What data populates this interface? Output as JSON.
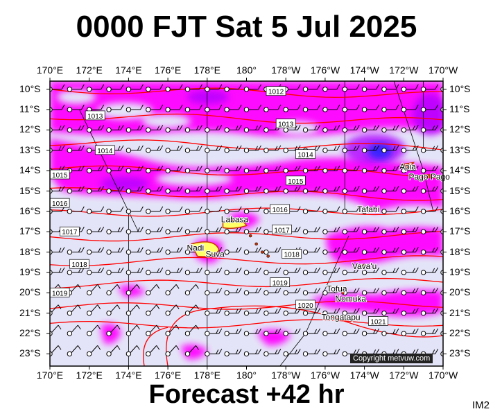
{
  "header": {
    "title": "0000 FJT Sat 5 Jul 2025"
  },
  "footer": {
    "forecast": "Forecast +42 hr",
    "tag": "IM2"
  },
  "copyright": "Copyright metvuw.com",
  "axes": {
    "lon_labels": [
      "170°E",
      "172°E",
      "174°E",
      "176°E",
      "178°E",
      "180°",
      "178°W",
      "176°W",
      "174°W",
      "172°W",
      "170°W"
    ],
    "lat_labels": [
      "10°S",
      "11°S",
      "12°S",
      "13°S",
      "14°S",
      "15°S",
      "16°S",
      "17°S",
      "18°S",
      "19°S",
      "20°S",
      "21°S",
      "22°S",
      "23°S"
    ]
  },
  "isobars": [
    {
      "label": "1012",
      "label_lon": 181.5,
      "label_lat": -10.1
    },
    {
      "label": "1013",
      "label_lon": 172.3,
      "label_lat": -11.3
    },
    {
      "label": "1013",
      "label_lon": 182.0,
      "label_lat": -11.7
    },
    {
      "label": "1014",
      "label_lon": 172.8,
      "label_lat": -13.0
    },
    {
      "label": "1014",
      "label_lon": 183.0,
      "label_lat": -13.2
    },
    {
      "label": "1015",
      "label_lon": 170.5,
      "label_lat": -14.2
    },
    {
      "label": "1015",
      "label_lon": 182.5,
      "label_lat": -14.5
    },
    {
      "label": "1016",
      "label_lon": 170.5,
      "label_lat": -15.6
    },
    {
      "label": "1016",
      "label_lon": 181.7,
      "label_lat": -15.9
    },
    {
      "label": "1017",
      "label_lon": 171.0,
      "label_lat": -17.0
    },
    {
      "label": "1017",
      "label_lon": 181.8,
      "label_lat": -16.9
    },
    {
      "label": "1018",
      "label_lon": 171.5,
      "label_lat": -18.6
    },
    {
      "label": "1018",
      "label_lon": 182.3,
      "label_lat": -18.1
    },
    {
      "label": "1019",
      "label_lon": 170.5,
      "label_lat": -20.0
    },
    {
      "label": "1019",
      "label_lon": 181.7,
      "label_lat": -19.5
    },
    {
      "label": "1020",
      "label_lon": 183.0,
      "label_lat": -20.6
    },
    {
      "label": "1021",
      "label_lon": 186.7,
      "label_lat": -21.4
    }
  ],
  "places": [
    {
      "name": "Apia",
      "lon": 188.2,
      "lat": -13.8
    },
    {
      "name": "Pago Pago",
      "lon": 189.3,
      "lat": -14.3
    },
    {
      "name": "Tafahi",
      "lon": 186.2,
      "lat": -15.9
    },
    {
      "name": "Labasa",
      "lon": 179.4,
      "lat": -16.4
    },
    {
      "name": "Nadi",
      "lon": 177.4,
      "lat": -17.8
    },
    {
      "name": "Suva",
      "lon": 178.4,
      "lat": -18.1
    },
    {
      "name": "Vava'u",
      "lon": 186.0,
      "lat": -18.7
    },
    {
      "name": "Tofua",
      "lon": 184.6,
      "lat": -19.8
    },
    {
      "name": "Nomuka",
      "lon": 185.3,
      "lat": -20.3
    },
    {
      "name": "Tongatapu",
      "lon": 184.8,
      "lat": -21.2
    }
  ],
  "colors": {
    "background": "#e4e4f8",
    "rain_light": "#ff00ff",
    "rain_medium": "#b000ff",
    "rain_heavy": "#2020ff",
    "isobar": "#ff0000",
    "island": "#c83200",
    "grid": "#000000"
  }
}
